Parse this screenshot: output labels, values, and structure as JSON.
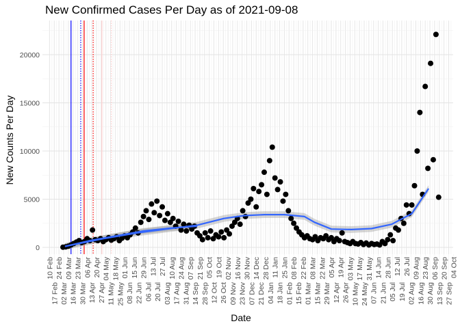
{
  "chart_data": {
    "type": "scatter",
    "title": "New Confirmed Cases Per Day as of 2021-09-08",
    "xlabel": "Date",
    "ylabel": "New Counts Per Day",
    "ylim": [
      -1200,
      23000
    ],
    "y_ticks": [
      0,
      5000,
      10000,
      15000,
      20000
    ],
    "y_tick_labels": [
      "0",
      "5000",
      "10000",
      "15000",
      "20000"
    ],
    "grid": true,
    "x_unit": "days since first observation",
    "xlim_days": [
      -27,
      583
    ],
    "point_step_days": 4,
    "values": [
      20,
      50,
      120,
      250,
      400,
      550,
      700,
      500,
      600,
      900,
      700,
      1800,
      800,
      700,
      900,
      600,
      800,
      1000,
      750,
      900,
      1100,
      700,
      950,
      1200,
      1000,
      1300,
      1600,
      2000,
      1500,
      2600,
      3200,
      3800,
      2900,
      4500,
      3600,
      4800,
      3300,
      4200,
      2800,
      3500,
      2600,
      3000,
      2200,
      2700,
      1800,
      2400,
      1700,
      2300,
      1900,
      2200,
      1500,
      1200,
      800,
      1500,
      1000,
      1700,
      900,
      1300,
      1100,
      1600,
      1000,
      1800,
      1400,
      2200,
      2600,
      3000,
      2400,
      3800,
      3200,
      4600,
      5000,
      6100,
      4200,
      5800,
      6500,
      7800,
      5500,
      9000,
      10400,
      7200,
      6000,
      6800,
      4800,
      5500,
      3800,
      3000,
      2500,
      2000,
      1600,
      1300,
      1000,
      1200,
      900,
      800,
      1100,
      700,
      1000,
      900,
      1200,
      800,
      1000,
      600,
      900,
      700,
      1500,
      600,
      500,
      400,
      600,
      400,
      350,
      500,
      300,
      450,
      250,
      400,
      300,
      350,
      250,
      600,
      400,
      800,
      1300,
      700,
      2000,
      1800,
      3000,
      2500,
      4400,
      3500,
      4400,
      6400,
      10000,
      14000,
      5500,
      16700,
      8200,
      19100,
      9100,
      22100,
      5200
    ],
    "smooth_full": {
      "days": [
        3,
        60,
        110,
        160,
        200,
        240,
        270,
        300,
        330,
        360,
        375,
        400,
        430,
        460,
        490,
        520,
        545
      ],
      "values": [
        100,
        900,
        1500,
        1950,
        2300,
        3000,
        3300,
        3400,
        3400,
        3200,
        2600,
        1900,
        1850,
        1950,
        2400,
        3500,
        6100
      ],
      "band": 350,
      "color": "#3366ff"
    },
    "smooth_early": {
      "days": [
        3,
        40,
        80,
        120,
        160,
        200
      ],
      "values": [
        100,
        700,
        1200,
        1700,
        2000,
        2200
      ],
      "band": 300,
      "color": "#3366ff"
    },
    "vlines": [
      {
        "day": 12,
        "color": "#0000ff",
        "style": "solid"
      },
      {
        "day": 26.5,
        "color": "#0000ff",
        "style": "dotted"
      },
      {
        "day": 31.5,
        "color": "#ff0000",
        "style": "solid"
      },
      {
        "day": 45,
        "color": "#ff0000",
        "style": "dotted"
      },
      {
        "day": 58,
        "color": "#ffcccc",
        "style": "solid"
      },
      {
        "day": 72,
        "color": "#ffcccc",
        "style": "dotted"
      }
    ],
    "x_tick_start_day": -20,
    "x_tick_step_days": 7,
    "x_tick_labels": [
      "10 Feb",
      "17 Feb",
      "24 Feb",
      "02 Mar",
      "09 Mar",
      "16 Mar",
      "23 Mar",
      "30 Mar",
      "06 Apr",
      "13 Apr",
      "20 Apr",
      "27 Apr",
      "04 May",
      "11 May",
      "18 May",
      "25 May",
      "01 Jun",
      "08 Jun",
      "15 Jun",
      "22 Jun",
      "29 Jun",
      "06 Jul",
      "13 Jul",
      "20 Jul",
      "27 Jul",
      "03 Aug",
      "10 Aug",
      "17 Aug",
      "24 Aug",
      "31 Aug",
      "07 Sep",
      "14 Sep",
      "21 Sep",
      "28 Sep",
      "05 Oct",
      "12 Oct",
      "19 Oct",
      "26 Oct",
      "02 Nov",
      "09 Nov",
      "16 Nov",
      "23 Nov",
      "30 Nov",
      "07 Dec",
      "14 Dec",
      "21 Dec",
      "28 Dec",
      "04 Jan",
      "11 Jan",
      "18 Jan",
      "25 Jan",
      "01 Feb",
      "08 Feb",
      "15 Feb",
      "22 Feb",
      "01 Mar",
      "08 Mar",
      "15 Mar",
      "22 Mar",
      "29 Mar",
      "05 Apr",
      "12 Apr",
      "19 Apr",
      "26 Apr",
      "03 May",
      "10 May",
      "17 May",
      "24 May",
      "31 May",
      "07 Jun",
      "14 Jun",
      "21 Jun",
      "28 Jun",
      "05 Jul",
      "12 Jul",
      "19 Jul",
      "26 Jul",
      "02 Aug",
      "09 Aug",
      "16 Aug",
      "23 Aug",
      "30 Aug",
      "06 Sep",
      "13 Sep",
      "20 Sep",
      "27 Sep",
      "04 Oct"
    ]
  }
}
